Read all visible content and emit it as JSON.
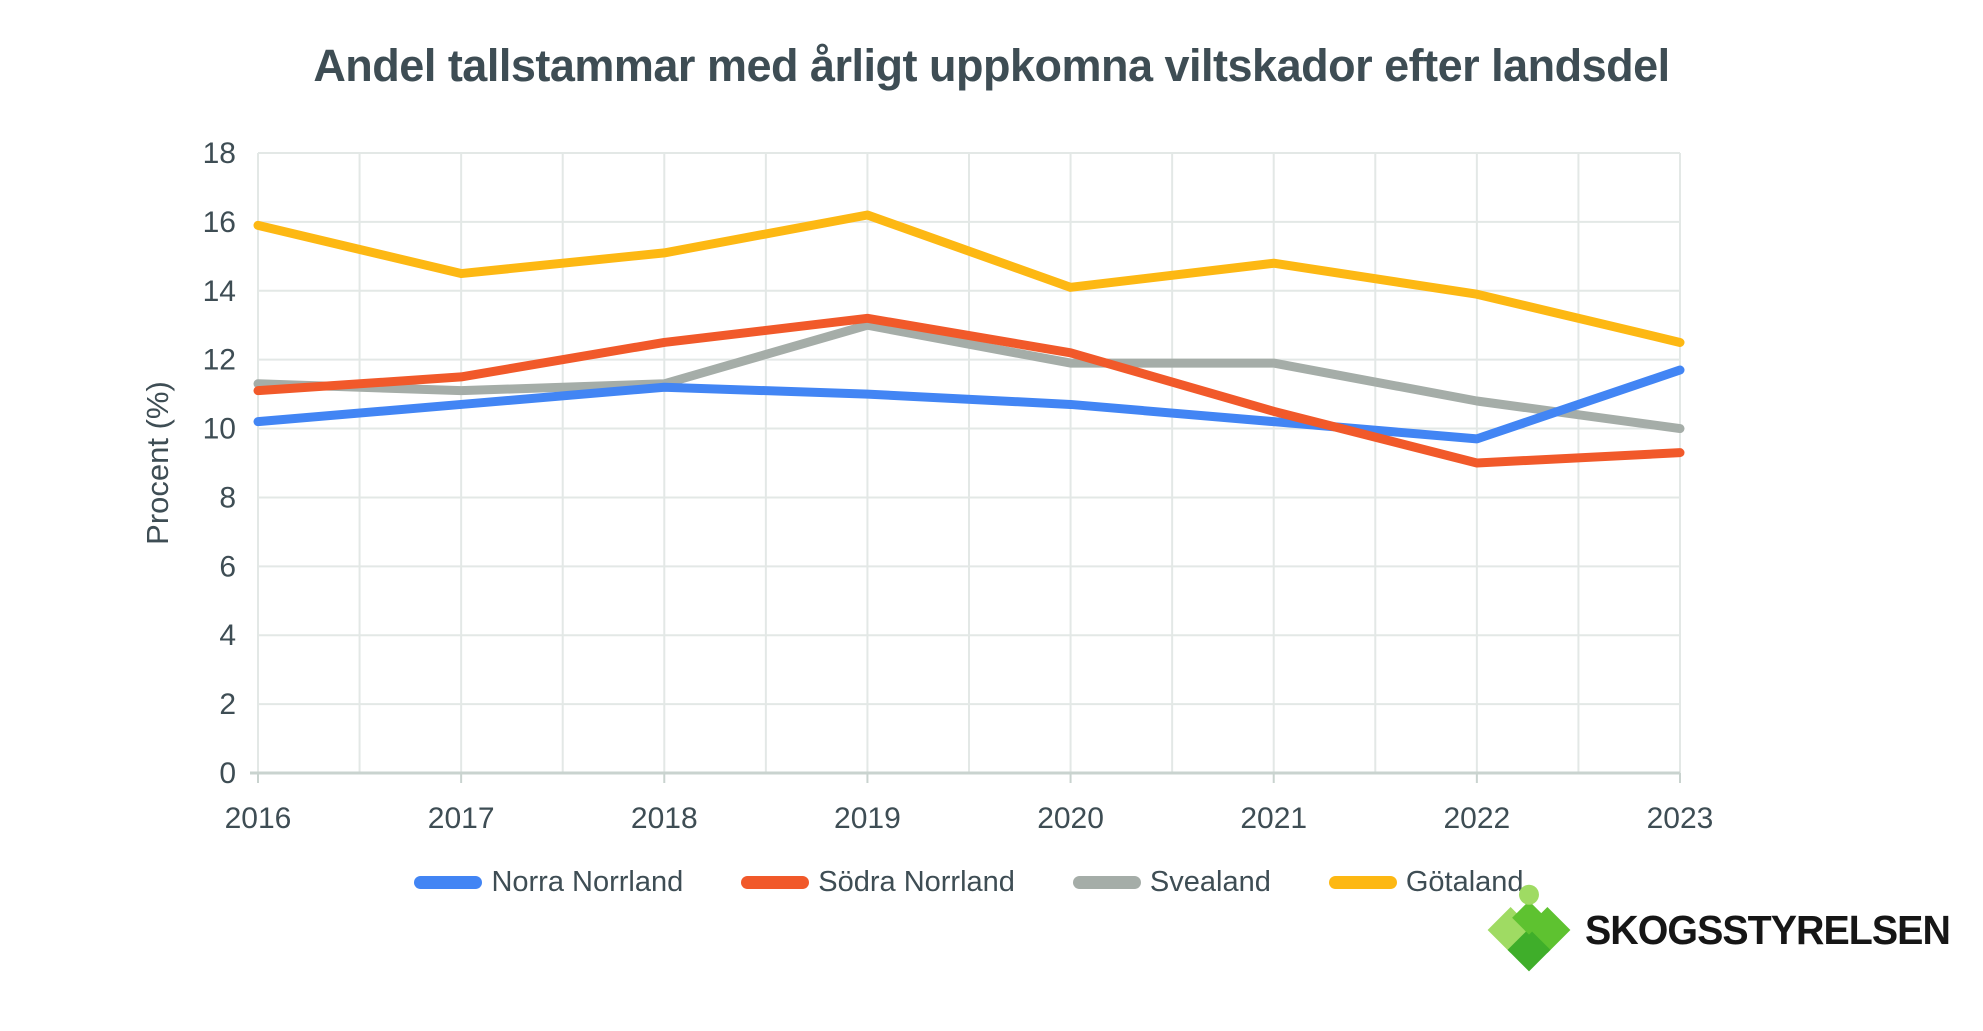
{
  "title": "Andel tallstammar med årligt uppkomna viltskador efter landsdel",
  "logo": {
    "text": "SKOGSSTYRELSEN"
  },
  "colors": {
    "title_text": "#3E4D54",
    "axis_text": "#3E4D54",
    "grid": "#E3E8E6",
    "axis_line": "#C9D3CF",
    "background": "#FFFFFF",
    "logo_light_green": "#9FDB63",
    "logo_mid_green": "#5EC230",
    "logo_dark_green": "#3FAE2A",
    "logo_text": "#161616"
  },
  "chart_data": {
    "type": "line",
    "title": "Andel tallstammar med årligt uppkomna viltskador efter landsdel",
    "xlabel": "",
    "ylabel": "Procent (%)",
    "x": [
      2016,
      2017,
      2018,
      2019,
      2020,
      2021,
      2022,
      2023
    ],
    "series": [
      {
        "name": "Norra Norrland",
        "color": "#4285F4",
        "values": [
          10.2,
          10.7,
          11.2,
          11.0,
          10.7,
          10.2,
          9.7,
          11.7
        ]
      },
      {
        "name": "Södra Norrland",
        "color": "#F1592A",
        "values": [
          11.1,
          11.5,
          12.5,
          13.2,
          12.2,
          10.5,
          9.0,
          9.3
        ]
      },
      {
        "name": "Svealand",
        "color": "#A5ADA8",
        "values": [
          11.3,
          11.1,
          11.3,
          13.0,
          11.9,
          11.9,
          10.8,
          10.0
        ]
      },
      {
        "name": "Götaland",
        "color": "#FDB813",
        "values": [
          15.9,
          14.5,
          15.1,
          16.2,
          14.1,
          14.8,
          13.9,
          12.5
        ]
      }
    ],
    "ylim": [
      0,
      18
    ],
    "yticks": [
      0,
      2,
      4,
      6,
      8,
      10,
      12,
      14,
      16,
      18
    ],
    "grid": "horizontal every 2 units, vertical every half year",
    "legend_position": "bottom",
    "legend_order": [
      "Norra Norrland",
      "Södra Norrland",
      "Svealand",
      "Götaland"
    ]
  }
}
